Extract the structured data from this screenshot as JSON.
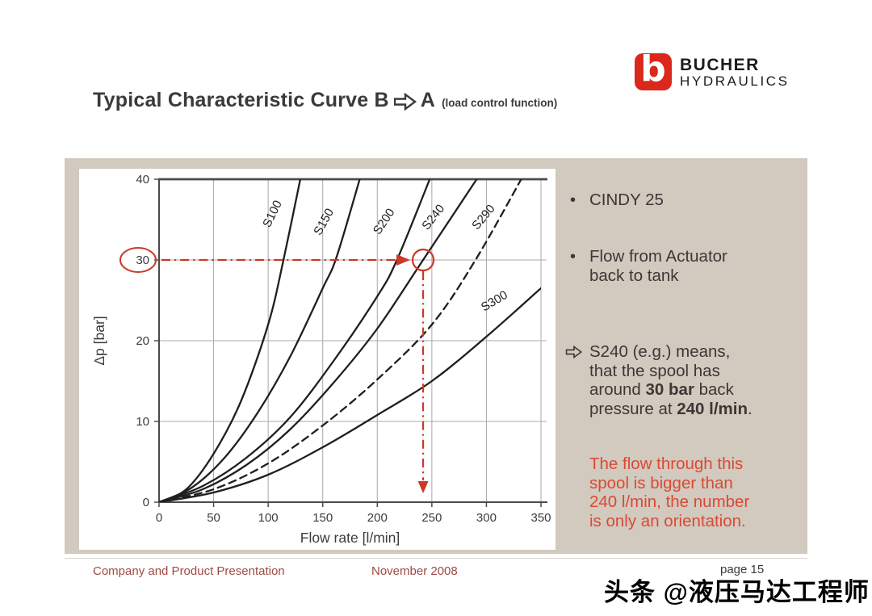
{
  "header": {
    "title_prefix": "Typical Characteristic Curve B",
    "title_suffix": "A",
    "title_note": "(load control function)"
  },
  "logo": {
    "mark_letter": "b",
    "line1": "BUCHER",
    "line2": "HYDRAULICS"
  },
  "colors": {
    "panel_bg": "#d2c9bf",
    "brand_red": "#da291c",
    "annotation_red": "#cb3927",
    "note_red": "#da4a33",
    "footer_red": "#a04a44",
    "curve": "#1f1f1f",
    "grid": "#a8a8a8",
    "axis": "#4a4a4a",
    "text": "#3c3c3c"
  },
  "chart_data": {
    "type": "line",
    "title": "",
    "xlabel": "Flow rate [l/min]",
    "ylabel": "Δp [bar]",
    "xlim": [
      0,
      350
    ],
    "ylim": [
      0,
      40
    ],
    "x_ticks": [
      0,
      50,
      100,
      150,
      200,
      250,
      300,
      350
    ],
    "y_ticks": [
      0,
      10,
      20,
      30,
      40
    ],
    "grid": true,
    "legend_position": "labels-on-curves",
    "series": [
      {
        "name": "S100",
        "dashed": false,
        "points": [
          [
            0,
            0
          ],
          [
            25,
            1.6
          ],
          [
            50,
            6
          ],
          [
            75,
            12.5
          ],
          [
            100,
            22
          ],
          [
            114,
            30
          ],
          [
            131,
            41
          ]
        ],
        "label_at": [
          107,
          35.5
        ],
        "label_angle": -64
      },
      {
        "name": "S150",
        "dashed": false,
        "points": [
          [
            0,
            0
          ],
          [
            30,
            1.8
          ],
          [
            60,
            5.5
          ],
          [
            90,
            11
          ],
          [
            120,
            18
          ],
          [
            150,
            26.5
          ],
          [
            163,
            30.5
          ],
          [
            186,
            41
          ]
        ],
        "label_at": [
          154,
          34.5
        ],
        "label_angle": -61
      },
      {
        "name": "S200",
        "dashed": false,
        "points": [
          [
            0,
            0
          ],
          [
            40,
            2
          ],
          [
            80,
            5.5
          ],
          [
            120,
            10.5
          ],
          [
            160,
            17.5
          ],
          [
            200,
            25.5
          ],
          [
            218,
            30
          ],
          [
            251,
            41
          ]
        ],
        "label_at": [
          209,
          34.5
        ],
        "label_angle": -56
      },
      {
        "name": "S240",
        "dashed": false,
        "points": [
          [
            0,
            0
          ],
          [
            40,
            1.6
          ],
          [
            80,
            4.6
          ],
          [
            120,
            9
          ],
          [
            160,
            14.8
          ],
          [
            200,
            21.5
          ],
          [
            242,
            30
          ],
          [
            296,
            41
          ]
        ],
        "label_at": [
          254,
          35
        ],
        "label_angle": -52
      },
      {
        "name": "S290",
        "dashed": true,
        "points": [
          [
            0,
            0
          ],
          [
            50,
            1.6
          ],
          [
            100,
            4.8
          ],
          [
            150,
            9.5
          ],
          [
            200,
            15.2
          ],
          [
            250,
            22
          ],
          [
            290,
            30
          ],
          [
            336,
            41
          ]
        ],
        "label_at": [
          300,
          35
        ],
        "label_angle": -50
      },
      {
        "name": "S300",
        "dashed": false,
        "points": [
          [
            0,
            0
          ],
          [
            50,
            1.2
          ],
          [
            100,
            3.4
          ],
          [
            150,
            6.8
          ],
          [
            200,
            10.8
          ],
          [
            250,
            15
          ],
          [
            300,
            20.5
          ],
          [
            350,
            26.5
          ]
        ],
        "label_at": [
          309,
          24.5
        ],
        "label_angle": -31
      }
    ],
    "annotation": {
      "circled_y_tick": 30,
      "pressure": 30,
      "flow": 242,
      "style": "red dash-dot guide: 30 bar across to S240 curve, dropping to ~240 l/min"
    }
  },
  "panel": {
    "bullet_glyph": "•",
    "cindy": "CINDY 25",
    "flow_l1": "Flow from Actuator",
    "flow_l2": "back to tank",
    "s240": {
      "l1": "S240 (e.g.) means,",
      "l2": "that the spool has",
      "l3_pre": "around ",
      "l3_bold": "30 bar",
      "l3_post": " back",
      "l4_pre": "pressure at ",
      "l4_bold": "240 l/min",
      "l4_post": "."
    },
    "note": {
      "l1": "The flow through this",
      "l2": "spool is bigger than",
      "l3": "240 l/min, the number",
      "l4": "is only an orientation."
    }
  },
  "footer": {
    "left": "Company and Product Presentation",
    "center": "November 2008",
    "page": "page 15"
  },
  "watermark": {
    "text": "头条 @液压马达工程师"
  }
}
